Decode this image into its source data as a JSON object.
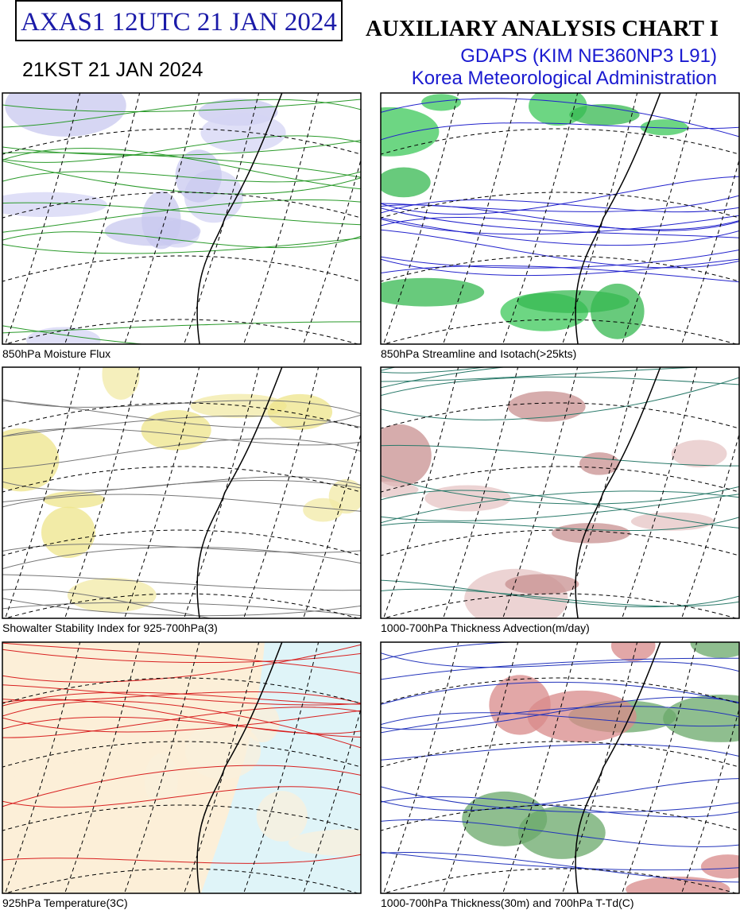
{
  "header": {
    "code": "AXAS1  12UTC 21 JAN 2024",
    "local_time": "21KST 21 JAN 2024",
    "title": "AUXILIARY ANALYSIS CHART  I",
    "model": "GDAPS (KIM NE360NP3 L91)",
    "agency": "Korea Meteorological Administration"
  },
  "panels": [
    {
      "caption": "850hPa Moisture Flux"
    },
    {
      "caption": "850hPa Streamline and Isotach(>25kts)"
    },
    {
      "caption": "Showalter Stability Index for 925-700hPa(3)"
    },
    {
      "caption": "1000-700hPa Thickness Advection(m/day)"
    },
    {
      "caption": "925hPa Temperature(3C)"
    },
    {
      "caption": "1000-700hPa Thickness(30m) and 700hPa T-Td(C)"
    }
  ]
}
